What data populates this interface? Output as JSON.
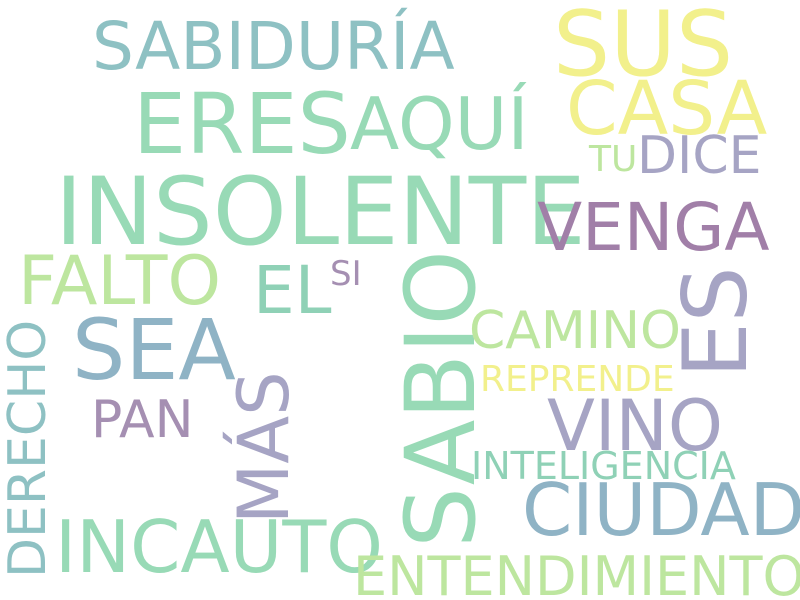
{
  "palette": {
    "teal": "#8ec1c3",
    "mint": "#98dab6",
    "steel": "#8fb3c5",
    "purple": "#a58fb2",
    "lavender": "#a6a4c4",
    "lime": "#bde69f",
    "yellow": "#f2f08c"
  },
  "words": [
    {
      "id": "sabiduria",
      "text": "SABIDURÍA",
      "color": "#8ec1c3"
    },
    {
      "id": "sus",
      "text": "SUS",
      "color": "#f2f08c"
    },
    {
      "id": "eres",
      "text": "ERES",
      "color": "#98dab6"
    },
    {
      "id": "aqui",
      "text": "AQUÍ",
      "color": "#98dab6"
    },
    {
      "id": "casa",
      "text": "CASA",
      "color": "#f2f08c"
    },
    {
      "id": "tu",
      "text": "TU",
      "color": "#bde69f"
    },
    {
      "id": "dice",
      "text": "DICE",
      "color": "#a6a4c4"
    },
    {
      "id": "insolente",
      "text": "INSOLENTE",
      "color": "#98dab6"
    },
    {
      "id": "venga",
      "text": "VENGA",
      "color": "#a17fa8"
    },
    {
      "id": "falto",
      "text": "FALTO",
      "color": "#bde69f"
    },
    {
      "id": "el",
      "text": "EL",
      "color": "#8fd1b6"
    },
    {
      "id": "si",
      "text": "SI",
      "color": "#a58fb2"
    },
    {
      "id": "sabio",
      "text": "SABIO",
      "color": "#98dab6"
    },
    {
      "id": "es",
      "text": "ES",
      "color": "#a6a4c4"
    },
    {
      "id": "sea",
      "text": "SEA",
      "color": "#8fb3c5"
    },
    {
      "id": "camino",
      "text": "CAMINO",
      "color": "#bde69f"
    },
    {
      "id": "reprende",
      "text": "REPRENDE",
      "color": "#f2f08c"
    },
    {
      "id": "derecho",
      "text": "DERECHO",
      "color": "#8ec1c3"
    },
    {
      "id": "pan",
      "text": "PAN",
      "color": "#a58fb2"
    },
    {
      "id": "mas",
      "text": "MÁS",
      "color": "#a6a4c4"
    },
    {
      "id": "vino",
      "text": "VINO",
      "color": "#a6a4c4"
    },
    {
      "id": "inteligencia",
      "text": "INTELIGENCIA",
      "color": "#8fd1b6"
    },
    {
      "id": "ciudad",
      "text": "CIUDAD",
      "color": "#8fb3c5"
    },
    {
      "id": "incauto",
      "text": "INCAUTO",
      "color": "#98dab6"
    },
    {
      "id": "entendimiento",
      "text": "ENTENDIMIENTO",
      "color": "#bde69f"
    }
  ]
}
